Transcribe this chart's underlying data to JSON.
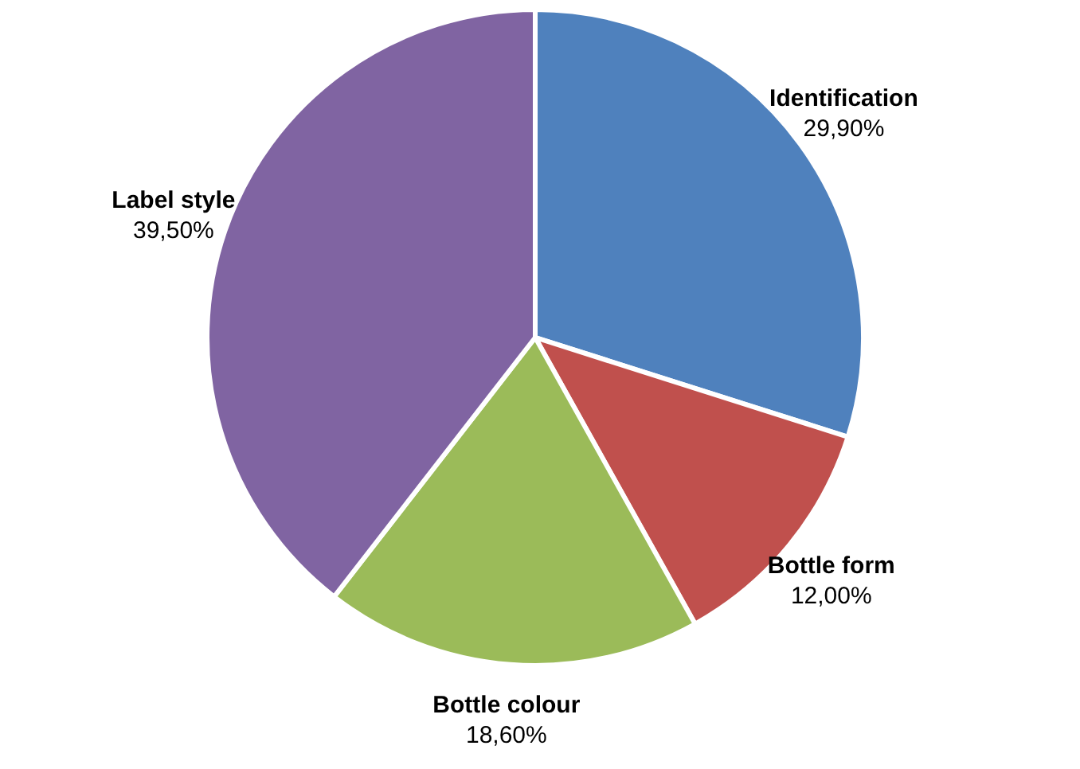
{
  "chart_data": {
    "type": "pie",
    "categories": [
      "Identification",
      "Bottle form",
      "Bottle colour",
      "Label style"
    ],
    "values": [
      29.9,
      12.0,
      18.6,
      39.5
    ],
    "value_labels": [
      "29,90%",
      "12,00%",
      "18,60%",
      "39,50%"
    ],
    "colors": [
      "#4f81bd",
      "#c0504d",
      "#9bbb59",
      "#8064a2"
    ]
  }
}
